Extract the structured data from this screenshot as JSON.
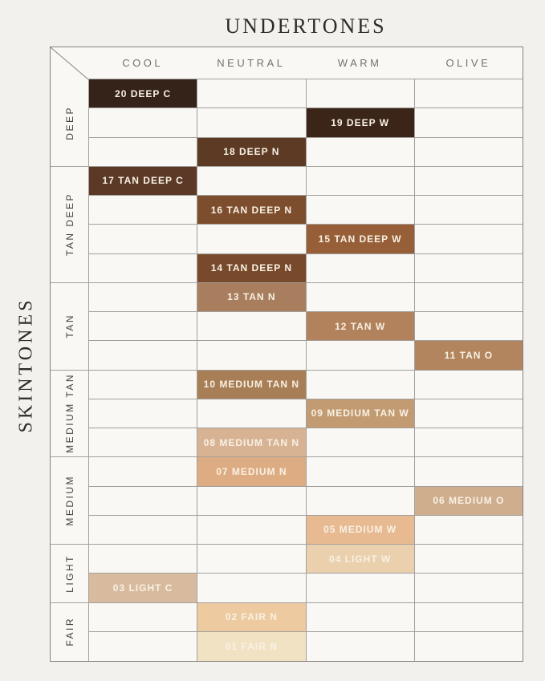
{
  "chart_data": {
    "type": "table",
    "title": "UNDERTONES",
    "ylabel": "SKINTONES",
    "columns": [
      "COOL",
      "NEUTRAL",
      "WARM",
      "OLIVE"
    ],
    "row_groups": [
      {
        "label": "DEEP",
        "rows": 3
      },
      {
        "label": "TAN DEEP",
        "rows": 4
      },
      {
        "label": "TAN",
        "rows": 3
      },
      {
        "label": "MEDIUM TAN",
        "rows": 3
      },
      {
        "label": "MEDIUM",
        "rows": 3
      },
      {
        "label": "LIGHT",
        "rows": 2
      },
      {
        "label": "FAIR",
        "rows": 2
      }
    ],
    "shades": [
      {
        "row": 1,
        "column": "COOL",
        "label": "20 DEEP C",
        "color": "#35231a"
      },
      {
        "row": 2,
        "column": "WARM",
        "label": "19 DEEP W",
        "color": "#3a2518"
      },
      {
        "row": 3,
        "column": "NEUTRAL",
        "label": "18 DEEP N",
        "color": "#5d3a24"
      },
      {
        "row": 4,
        "column": "COOL",
        "label": "17 TAN DEEP C",
        "color": "#5c3926"
      },
      {
        "row": 5,
        "column": "NEUTRAL",
        "label": "16 TAN DEEP N",
        "color": "#7d4e2e"
      },
      {
        "row": 6,
        "column": "WARM",
        "label": "15 TAN DEEP W",
        "color": "#975f38"
      },
      {
        "row": 7,
        "column": "NEUTRAL",
        "label": "14 TAN DEEP N",
        "color": "#784a2b"
      },
      {
        "row": 8,
        "column": "NEUTRAL",
        "label": "13 TAN N",
        "color": "#a87e5e"
      },
      {
        "row": 9,
        "column": "WARM",
        "label": "12 TAN W",
        "color": "#b1825c"
      },
      {
        "row": 10,
        "column": "OLIVE",
        "label": "11 TAN O",
        "color": "#b2855e"
      },
      {
        "row": 11,
        "column": "NEUTRAL",
        "label": "10 MEDIUM TAN N",
        "color": "#a87e57"
      },
      {
        "row": 12,
        "column": "WARM",
        "label": "09 MEDIUM TAN W",
        "color": "#c39b73"
      },
      {
        "row": 13,
        "column": "NEUTRAL",
        "label": "08 MEDIUM TAN N",
        "color": "#d7b394"
      },
      {
        "row": 14,
        "column": "NEUTRAL",
        "label": "07 MEDIUM N",
        "color": "#deac83"
      },
      {
        "row": 15,
        "column": "OLIVE",
        "label": "06 MEDIUM O",
        "color": "#cfae8e"
      },
      {
        "row": 16,
        "column": "WARM",
        "label": "05 MEDIUM W",
        "color": "#e8ba92"
      },
      {
        "row": 17,
        "column": "WARM",
        "label": "04 LIGHT W",
        "color": "#ead0ad"
      },
      {
        "row": 18,
        "column": "COOL",
        "label": "03 LIGHT C",
        "color": "#d8bb9e"
      },
      {
        "row": 19,
        "column": "NEUTRAL",
        "label": "02 FAIR N",
        "color": "#edca9f"
      },
      {
        "row": 20,
        "column": "NEUTRAL",
        "label": "01 FAIR N",
        "color": "#f2e2c4"
      }
    ]
  }
}
